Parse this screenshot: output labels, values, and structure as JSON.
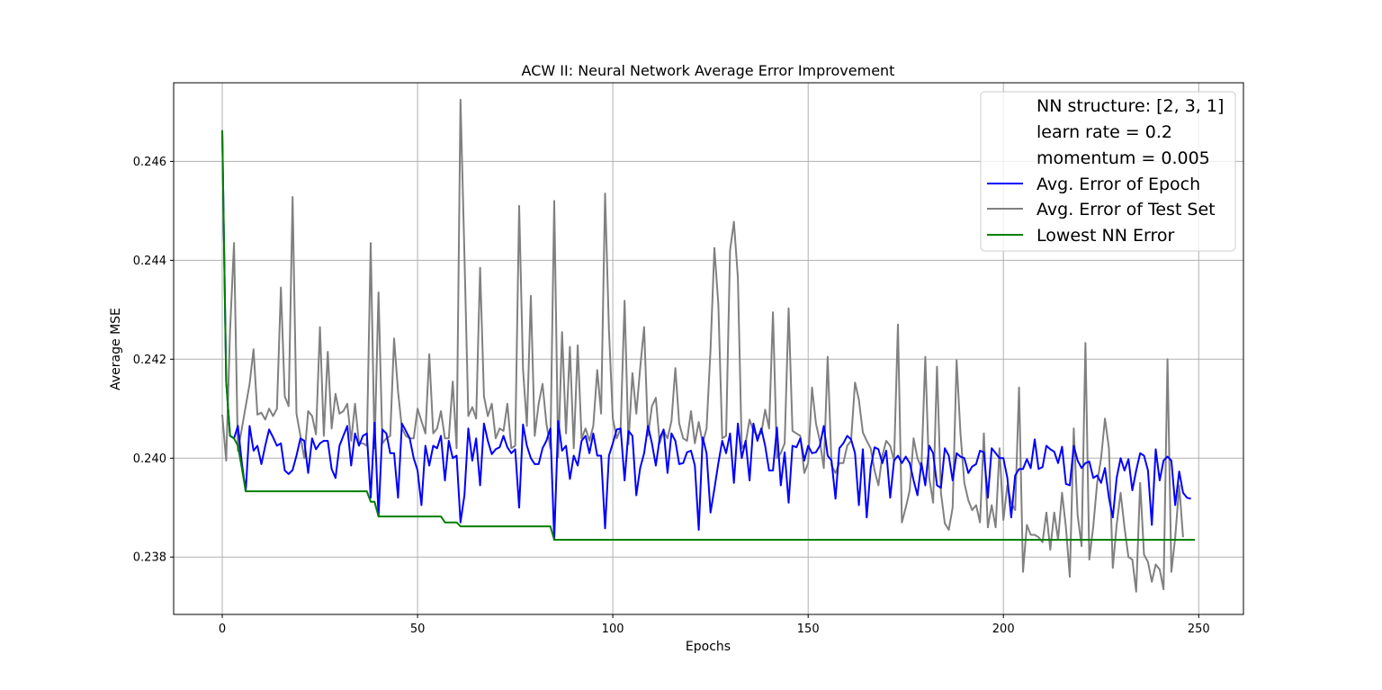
{
  "chart_data": {
    "type": "line",
    "title": "ACW II: Neural Network Average Error Improvement",
    "xlabel": "Epochs",
    "ylabel": "Average MSE",
    "xlim": [
      -12.45,
      261.45
    ],
    "ylim": [
      0.23684,
      0.24759
    ],
    "xticks": [
      0,
      50,
      100,
      150,
      200,
      250
    ],
    "xtick_labels": [
      "0",
      "50",
      "100",
      "150",
      "200",
      "250"
    ],
    "yticks": [
      0.238,
      0.24,
      0.242,
      0.244,
      0.246
    ],
    "ytick_labels": [
      "0.238",
      "0.240",
      "0.242",
      "0.244",
      "0.246"
    ],
    "grid": true,
    "legend_position": "top-right",
    "legend_text": [
      "NN structure: [2, 3, 1]",
      "learn rate = 0.2",
      "momentum = 0.005"
    ],
    "series": [
      {
        "name": "Avg. Error of Epoch",
        "color": "#0000ff",
        "x_start": 0,
        "x_step": 1,
        "values": [
          0.24663,
          0.24155,
          0.24045,
          0.2404,
          0.24065,
          0.2399,
          0.23933,
          0.24065,
          0.24015,
          0.24025,
          0.23988,
          0.24025,
          0.24058,
          0.24042,
          0.24025,
          0.2403,
          0.23975,
          0.23968,
          0.23976,
          0.24005,
          0.2404,
          0.24035,
          0.2397,
          0.2404,
          0.24018,
          0.2403,
          0.24035,
          0.24035,
          0.23978,
          0.2396,
          0.24025,
          0.24045,
          0.24065,
          0.23985,
          0.2405,
          0.24025,
          0.24045,
          0.2405,
          0.2392,
          0.24072,
          0.23882,
          0.24058,
          0.2405,
          0.2401,
          0.2401,
          0.2392,
          0.2407,
          0.24055,
          0.2404,
          0.24,
          0.23975,
          0.23905,
          0.24025,
          0.23985,
          0.24025,
          0.2402,
          0.24045,
          0.23955,
          0.24035,
          0.24,
          0.24005,
          0.2387,
          0.23925,
          0.2406,
          0.23995,
          0.2404,
          0.23945,
          0.2407,
          0.24035,
          0.24008,
          0.24018,
          0.24022,
          0.24045,
          0.24022,
          0.2401,
          0.24018,
          0.239,
          0.24068,
          0.24025,
          0.24,
          0.23988,
          0.23988,
          0.2402,
          0.24035,
          0.2406,
          0.23835,
          0.24075,
          0.24015,
          0.24025,
          0.23958,
          0.24005,
          0.23985,
          0.24035,
          0.24045,
          0.2401,
          0.2405,
          0.24005,
          0.24005,
          0.23858,
          0.24005,
          0.2403,
          0.24058,
          0.2406,
          0.23955,
          0.24055,
          0.24045,
          0.23925,
          0.2398,
          0.2401,
          0.24065,
          0.2403,
          0.23985,
          0.2404,
          0.24058,
          0.2397,
          0.2405,
          0.24035,
          0.23988,
          0.2399,
          0.24012,
          0.24015,
          0.23985,
          0.23855,
          0.24042,
          0.2401,
          0.2389,
          0.23938,
          0.2399,
          0.24035,
          0.2401,
          0.2405,
          0.2395,
          0.2407,
          0.24,
          0.24035,
          0.23955,
          0.2407,
          0.24035,
          0.2406,
          0.24025,
          0.23975,
          0.23975,
          0.24062,
          0.23945,
          0.24012,
          0.2391,
          0.24025,
          0.24022,
          0.2404,
          0.23995,
          0.24025,
          0.2401,
          0.24012,
          0.24025,
          0.24065,
          0.24005,
          0.23995,
          0.23918,
          0.2402,
          0.2403,
          0.24045,
          0.24038,
          0.2401,
          0.23905,
          0.24018,
          0.2388,
          0.2398,
          0.24022,
          0.24018,
          0.2399,
          0.24015,
          0.2392,
          0.23995,
          0.24005,
          0.2399,
          0.24003,
          0.2399,
          0.23955,
          0.23925,
          0.2399,
          0.23945,
          0.24025,
          0.2401,
          0.23945,
          0.2394,
          0.2402,
          0.24005,
          0.23955,
          0.2401,
          0.24003,
          0.24,
          0.2397,
          0.23983,
          0.23988,
          0.24015,
          0.24012,
          0.2392,
          0.2402,
          0.2401,
          0.24,
          0.24,
          0.2396,
          0.2388,
          0.23965,
          0.23978,
          0.23978,
          0.23998,
          0.2398,
          0.24038,
          0.23978,
          0.23982,
          0.24025,
          0.24018,
          0.24013,
          0.2399,
          0.24023,
          0.23948,
          0.23945,
          0.24025,
          0.23995,
          0.2398,
          0.2399,
          0.23993,
          0.2396,
          0.23965,
          0.2395,
          0.2398,
          0.2392,
          0.2388,
          0.2396,
          0.24,
          0.23975,
          0.23998,
          0.23935,
          0.23975,
          0.2401,
          0.24005,
          0.23975,
          0.23865,
          0.24018,
          0.23955,
          0.23995,
          0.24003,
          0.23995,
          0.23905,
          0.23973,
          0.2393,
          0.2392,
          0.23918
        ]
      },
      {
        "name": "Avg. Error of Test Set",
        "color": "#808080",
        "x_start": 0,
        "x_step": 1,
        "values": [
          0.24088,
          0.23995,
          0.24258,
          0.24435,
          0.24015,
          0.2406,
          0.24105,
          0.2415,
          0.2422,
          0.24088,
          0.24092,
          0.24078,
          0.241,
          0.24085,
          0.241,
          0.24345,
          0.24125,
          0.24105,
          0.24528,
          0.2409,
          0.24045,
          0.24,
          0.24095,
          0.24085,
          0.24048,
          0.24265,
          0.24045,
          0.24215,
          0.2406,
          0.2413,
          0.2409,
          0.24095,
          0.2411,
          0.24035,
          0.2411,
          0.2403,
          0.2403,
          0.24025,
          0.24435,
          0.2402,
          0.24335,
          0.2403,
          0.2404,
          0.24045,
          0.24242,
          0.24135,
          0.2406,
          0.24045,
          0.2404,
          0.2404,
          0.241,
          0.24075,
          0.2405,
          0.2421,
          0.2405,
          0.2406,
          0.24095,
          0.2404,
          0.2404,
          0.24155,
          0.2402,
          0.24725,
          0.2441,
          0.24085,
          0.24103,
          0.2408,
          0.24385,
          0.24125,
          0.24085,
          0.2411,
          0.2404,
          0.2406,
          0.24055,
          0.2411,
          0.2402,
          0.24025,
          0.2451,
          0.2418,
          0.24065,
          0.24328,
          0.24045,
          0.2411,
          0.2415,
          0.2407,
          0.2402,
          0.2452,
          0.24002,
          0.24255,
          0.2405,
          0.24225,
          0.2402,
          0.24228,
          0.2404,
          0.2406,
          0.24035,
          0.24065,
          0.24178,
          0.2409,
          0.24535,
          0.2426,
          0.2408,
          0.2404,
          0.2406,
          0.24318,
          0.24028,
          0.24172,
          0.2409,
          0.24182,
          0.24265,
          0.24045,
          0.24105,
          0.24122,
          0.2403,
          0.24055,
          0.2404,
          0.24075,
          0.24182,
          0.2407,
          0.2404,
          0.24035,
          0.24095,
          0.2403,
          0.24073,
          0.2403,
          0.2406,
          0.2422,
          0.24425,
          0.2431,
          0.2404,
          0.24045,
          0.2442,
          0.24478,
          0.24365,
          0.2402,
          0.2403,
          0.24078,
          0.24055,
          0.24045,
          0.2405,
          0.24098,
          0.2406,
          0.24295,
          0.24,
          0.2401,
          0.2403,
          0.24303,
          0.24055,
          0.2405,
          0.24045,
          0.2397,
          0.2399,
          0.24143,
          0.2407,
          0.24035,
          0.2398,
          0.24205,
          0.23985,
          0.2397,
          0.2399,
          0.2399,
          0.24025,
          0.24035,
          0.24153,
          0.24118,
          0.24052,
          0.24035,
          0.2402,
          0.23975,
          0.23945,
          0.24005,
          0.24035,
          0.24025,
          0.23995,
          0.2427,
          0.2387,
          0.239,
          0.23935,
          0.2404,
          0.24,
          0.2398,
          0.24205,
          0.2396,
          0.2391,
          0.24185,
          0.2393,
          0.23868,
          0.23855,
          0.239,
          0.24198,
          0.2405,
          0.2395,
          0.23915,
          0.23895,
          0.23905,
          0.2387,
          0.2405,
          0.2386,
          0.23905,
          0.2386,
          0.2402,
          0.23875,
          0.23945,
          0.2391,
          0.23895,
          0.24143,
          0.2377,
          0.23865,
          0.23845,
          0.23845,
          0.2384,
          0.2383,
          0.2389,
          0.23815,
          0.2389,
          0.23835,
          0.2393,
          0.2386,
          0.2376,
          0.2406,
          0.23885,
          0.23822,
          0.24233,
          0.23795,
          0.23862,
          0.2395,
          0.24,
          0.2408,
          0.2402,
          0.23778,
          0.23865,
          0.2393,
          0.2386,
          0.238,
          0.23795,
          0.2373,
          0.2395,
          0.23805,
          0.2379,
          0.2375,
          0.23785,
          0.23775,
          0.23735,
          0.242,
          0.2377,
          0.2384,
          0.23945,
          0.2384
        ]
      },
      {
        "name": "Lowest NN Error",
        "color": "#008000",
        "points": [
          [
            0,
            0.24663
          ],
          [
            1,
            0.24155
          ],
          [
            2,
            0.24045
          ],
          [
            3,
            0.2404
          ],
          [
            4,
            0.24025
          ],
          [
            5,
            0.2398
          ],
          [
            6,
            0.23933
          ],
          [
            37,
            0.23933
          ],
          [
            38,
            0.23912
          ],
          [
            39,
            0.23912
          ],
          [
            40,
            0.23882
          ],
          [
            56,
            0.23882
          ],
          [
            57,
            0.2387
          ],
          [
            60,
            0.2387
          ],
          [
            61,
            0.23862
          ],
          [
            84,
            0.23862
          ],
          [
            85,
            0.23835
          ],
          [
            249,
            0.23835
          ]
        ]
      }
    ]
  }
}
